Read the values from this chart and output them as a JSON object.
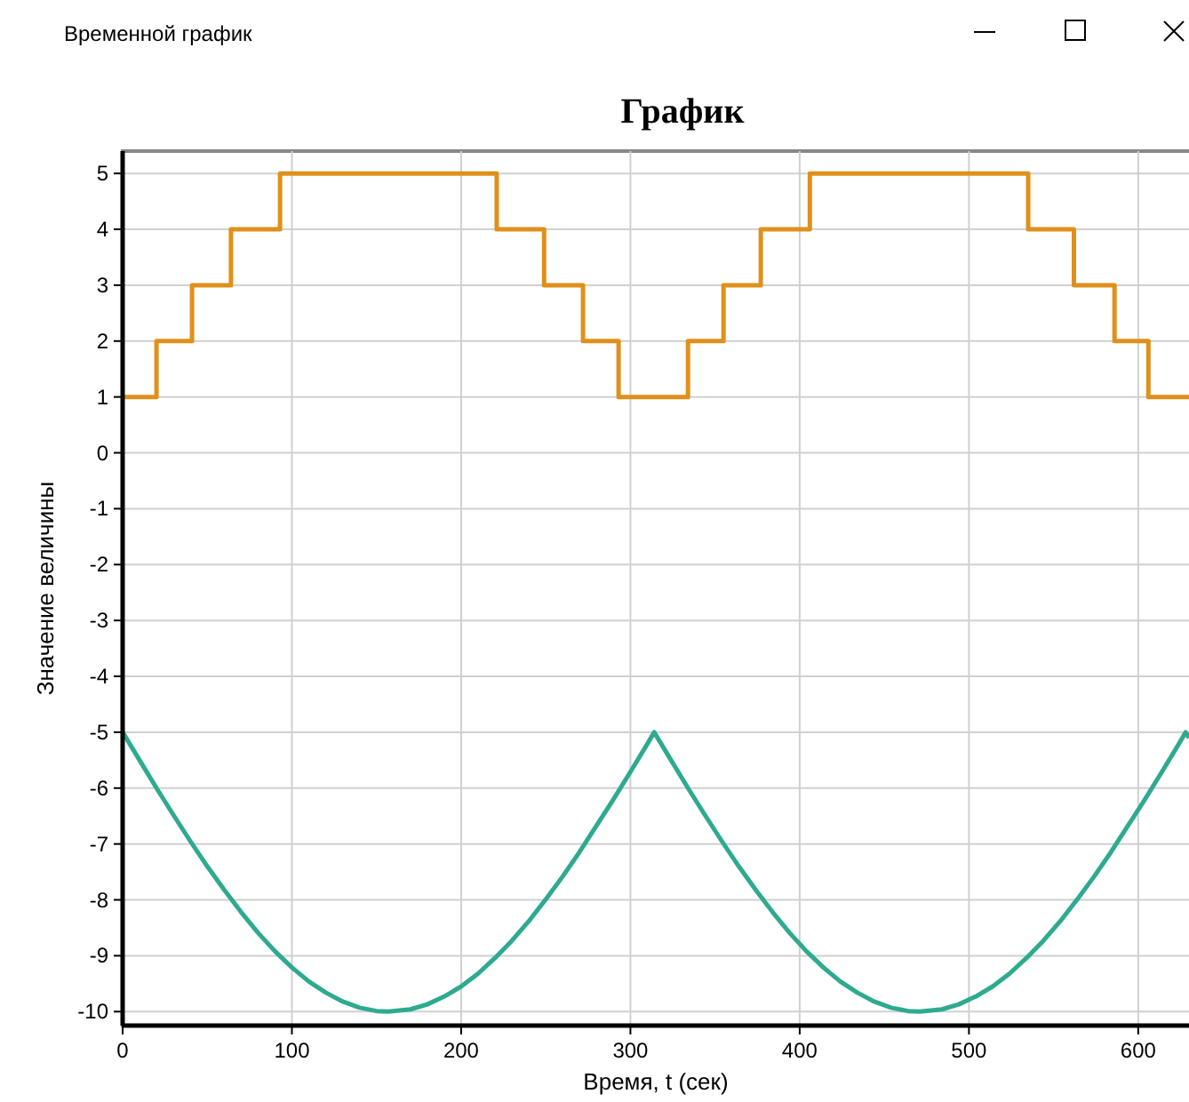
{
  "chart_data": {
    "type": "line",
    "title": "График",
    "xlabel": "Время, t (сек)",
    "ylabel": "Значение величины",
    "annotations": [
      "Временной график"
    ],
    "xlim": [
      0,
      630
    ],
    "ylim": [
      -10.25,
      5.4
    ],
    "xticks": [
      0,
      100,
      200,
      300,
      400,
      500,
      600
    ],
    "yticks": [
      -10,
      -9,
      -8,
      -7,
      -6,
      -5,
      -4,
      -3,
      -2,
      -1,
      0,
      1,
      2,
      3,
      4,
      5
    ],
    "grid": true,
    "marker": "none",
    "line_style": "solid",
    "series": [
      {
        "type": "step",
        "color": "#e0901a",
        "x": [
          0,
          20,
          41,
          64,
          93,
          221,
          249,
          272,
          293,
          334,
          355,
          377,
          406,
          535,
          562,
          586,
          606,
          630
        ],
        "values": [
          1,
          2,
          3,
          4,
          5,
          4,
          3,
          2,
          1,
          2,
          3,
          4,
          5,
          4,
          3,
          2,
          1,
          1
        ]
      },
      {
        "color": "#2eaa8f",
        "x": [
          0,
          10,
          20,
          30,
          40,
          50,
          60,
          70,
          80,
          90,
          100,
          110,
          120,
          130,
          140,
          150,
          157,
          170,
          180,
          190,
          200,
          210,
          220,
          230,
          240,
          250,
          260,
          270,
          280,
          290,
          300,
          310,
          314,
          324,
          334,
          344,
          354,
          364,
          374,
          384,
          394,
          404,
          414,
          424,
          434,
          444,
          454,
          464,
          471,
          484,
          494,
          504,
          514,
          524,
          534,
          544,
          554,
          564,
          574,
          584,
          594,
          604,
          614,
          624,
          628,
          630
        ],
        "values": [
          -5,
          -5.5,
          -6,
          -6.48,
          -6.95,
          -7.4,
          -7.82,
          -8.22,
          -8.59,
          -8.92,
          -9.21,
          -9.46,
          -9.66,
          -9.82,
          -9.93,
          -9.99,
          -10,
          -9.96,
          -9.87,
          -9.73,
          -9.55,
          -9.32,
          -9.04,
          -8.73,
          -8.38,
          -7.99,
          -7.58,
          -7.14,
          -6.67,
          -6.2,
          -5.71,
          -5.21,
          -5,
          -5.5,
          -6,
          -6.48,
          -6.95,
          -7.4,
          -7.82,
          -8.22,
          -8.59,
          -8.92,
          -9.21,
          -9.46,
          -9.66,
          -9.82,
          -9.93,
          -9.99,
          -10,
          -9.96,
          -9.87,
          -9.73,
          -9.55,
          -9.32,
          -9.04,
          -8.73,
          -8.38,
          -7.99,
          -7.58,
          -7.14,
          -6.67,
          -6.2,
          -5.71,
          -5.21,
          -5,
          -5.1
        ]
      }
    ]
  }
}
